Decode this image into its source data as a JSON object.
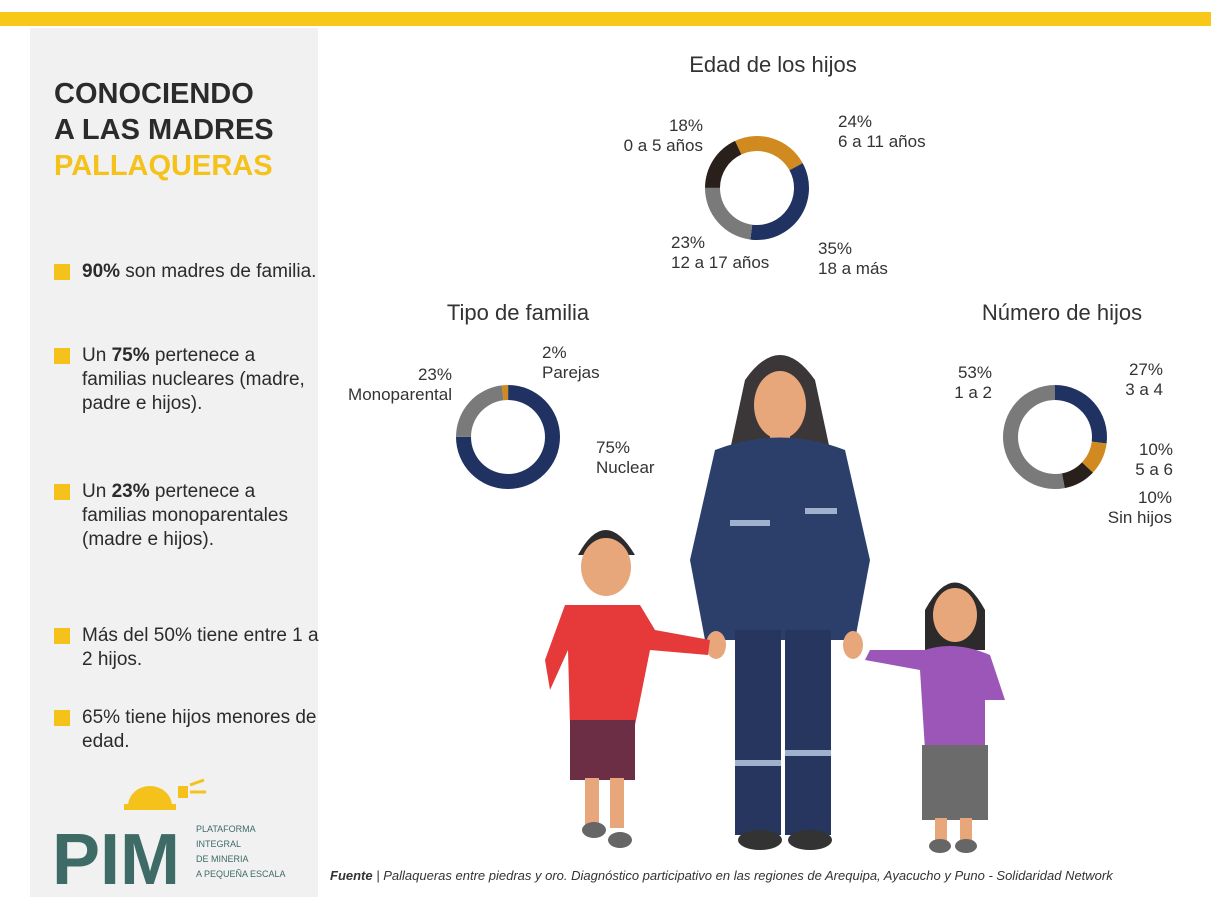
{
  "sidebar": {
    "title_lines": [
      "CONOCIENDO",
      "A LAS MADRES"
    ],
    "title_highlight": "PALLAQUERAS",
    "bullets": [
      {
        "parts": [
          {
            "text": "90%",
            "bold": true
          },
          {
            "text": " son madres de familia."
          }
        ]
      },
      {
        "parts": [
          {
            "text": "Un "
          },
          {
            "text": "75%",
            "bold": true
          },
          {
            "text": " pertenece a familias nucleares (madre, padre e hijos)."
          }
        ]
      },
      {
        "parts": [
          {
            "text": "Un "
          },
          {
            "text": "23%",
            "bold": true
          },
          {
            "text": " pertenece a familias monoparentales (madre e hijos)."
          }
        ]
      },
      {
        "parts": [
          {
            "text": "Más del 50% tiene entre 1 a 2 hijos."
          }
        ]
      },
      {
        "parts": [
          {
            "text": "65% tiene hijos menores de edad."
          }
        ]
      }
    ]
  },
  "logo": {
    "acronym": "PIM",
    "lines": [
      "PLATAFORMA",
      "INTEGRAL",
      "DE MINERIA",
      "A PEQUEÑA ESCALA"
    ]
  },
  "source": {
    "label": "Fuente",
    "text": "| Pallaqueras entre piedras y oro. Diagnóstico participativo en las regiones de Arequipa, Ayacucho y Puno - Solidaridad Network"
  },
  "chart_data": [
    {
      "type": "donut",
      "title": "Edad de los hijos",
      "categories": [
        "6 a 11 años",
        "18 a más",
        "12 a 17 años",
        "0 a 5 años"
      ],
      "values": [
        24,
        35,
        23,
        18
      ],
      "value_labels": [
        "24%",
        "35%",
        "23%",
        "18%"
      ],
      "colors": [
        "#d08a1f",
        "#1f3262",
        "#7a7a7a",
        "#2a201b"
      ]
    },
    {
      "type": "donut",
      "title": "Tipo de familia",
      "categories": [
        "Parejas",
        "Nuclear",
        "Monoparental"
      ],
      "values": [
        2,
        75,
        23
      ],
      "value_labels": [
        "2%",
        "75%",
        "23%"
      ],
      "colors": [
        "#d08a1f",
        "#1f3262",
        "#7a7a7a"
      ]
    },
    {
      "type": "donut",
      "title": "Número de hijos",
      "categories": [
        "3 a 4",
        "5 a 6",
        "Sin hijos",
        "1 a 2"
      ],
      "values": [
        27,
        10,
        10,
        53
      ],
      "value_labels": [
        "27%",
        "10%",
        "10%",
        "53%"
      ],
      "colors": [
        "#1f3262",
        "#d08a1f",
        "#2a201b",
        "#7a7a7a"
      ]
    }
  ]
}
